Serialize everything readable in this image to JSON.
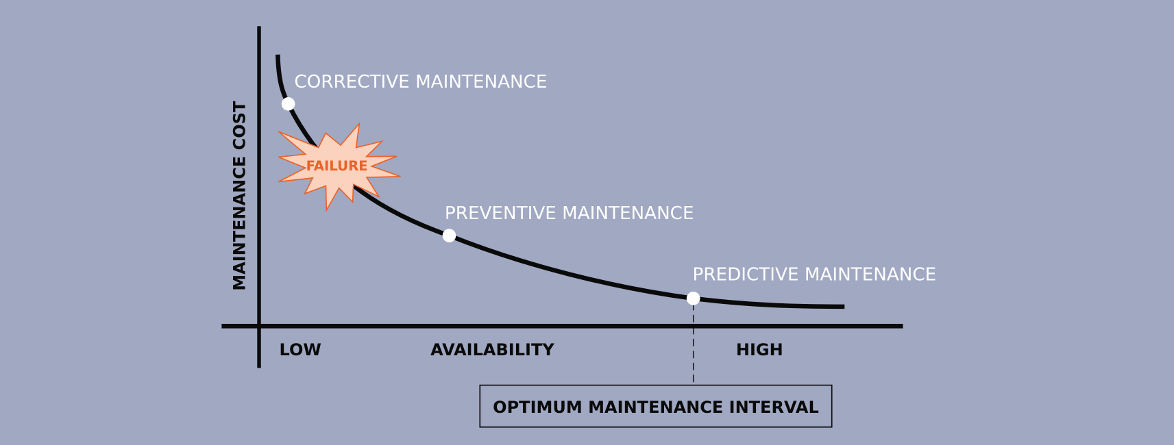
{
  "diagram": {
    "y_axis_label": "MAINTENANCE COST",
    "x_axis_low": "LOW",
    "x_axis_label": "AVAILABILITY",
    "x_axis_high": "HIGH",
    "points": [
      {
        "label": "CORRECTIVE MAINTENANCE"
      },
      {
        "label": "PREVENTIVE MAINTENANCE"
      },
      {
        "label": "PREDICTIVE MAINTENANCE"
      }
    ],
    "failure_label": "FAILURE",
    "optimum_label": "OPTIMUM MAINTENANCE INTERVAL",
    "colors": {
      "background": "#a0a8c2",
      "curve": "#0a0a0a",
      "failure_fill": "#fbd2bd",
      "failure_stroke": "#e8622a",
      "point": "#ffffff"
    }
  }
}
